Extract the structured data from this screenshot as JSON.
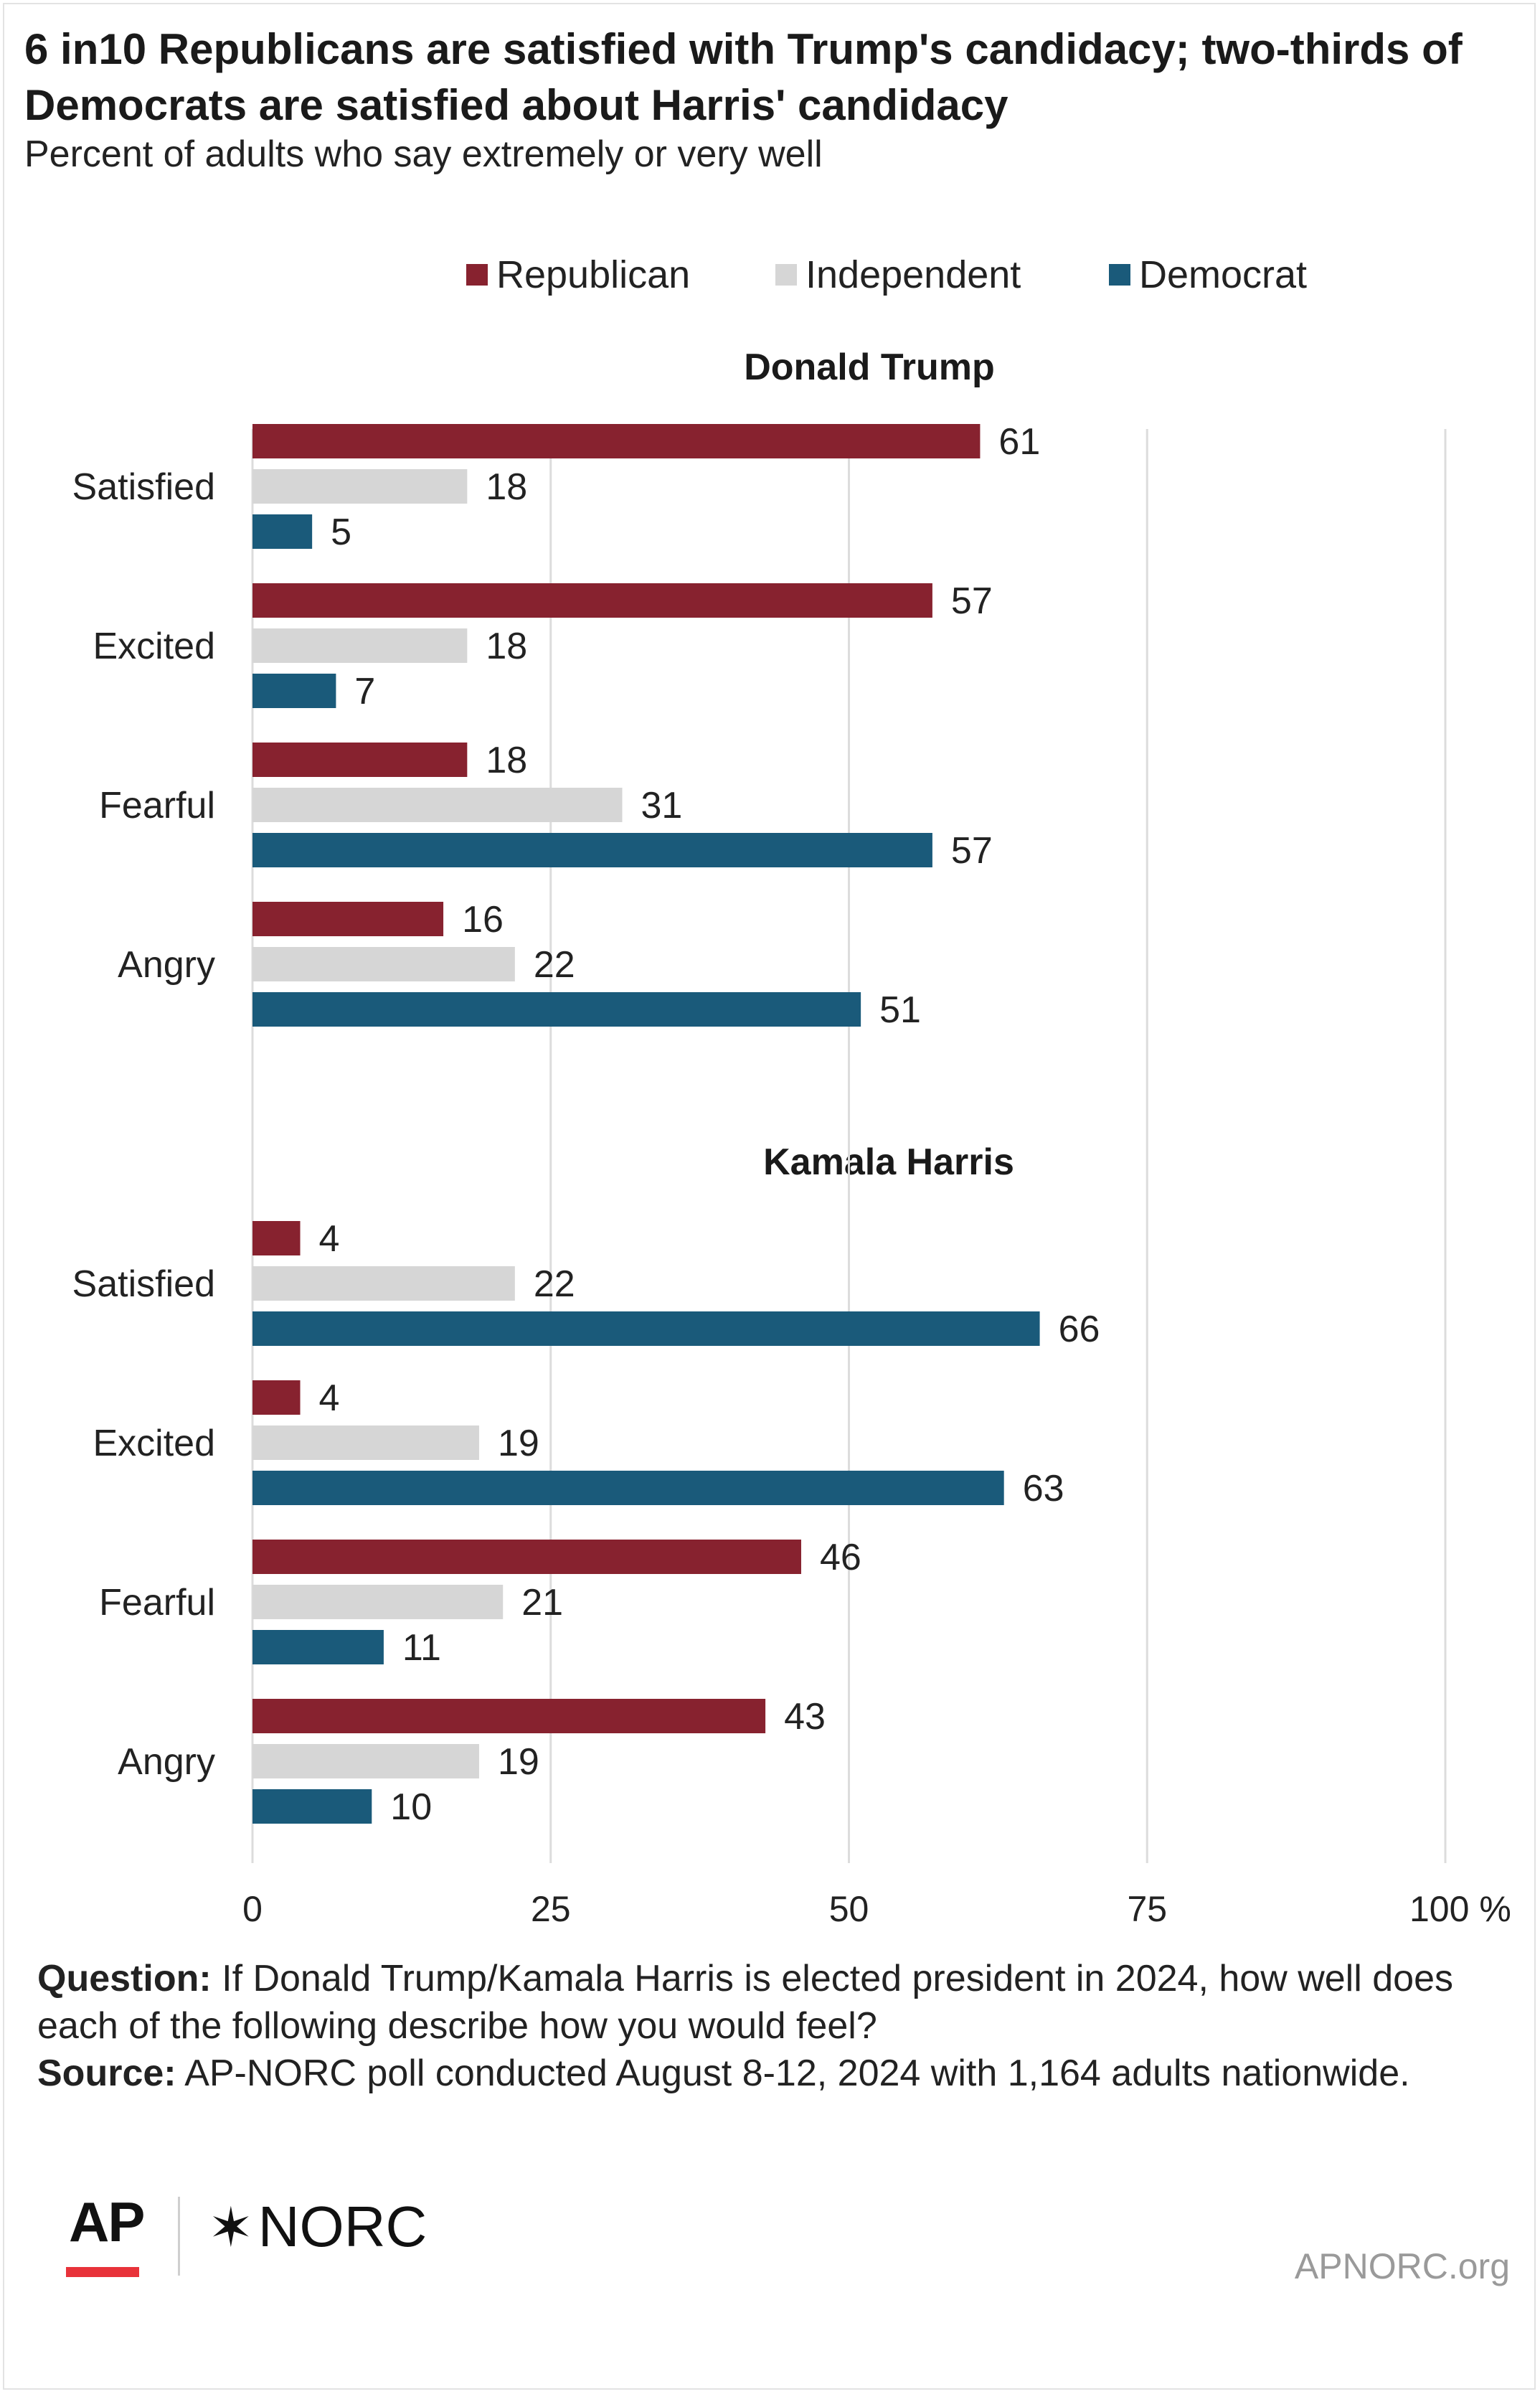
{
  "header": {
    "title": " 6 in10 Republicans are satisfied with Trump's candidacy; two-thirds of Democrats are satisfied about Harris' candidacy",
    "subtitle": "Percent of adults who say extremely or very well"
  },
  "colors": {
    "republican": "#87222f",
    "independent": "#d6d6d6",
    "democrat": "#1a5a7a",
    "grid": "#dcdcdc"
  },
  "chart_data": {
    "type": "bar",
    "orientation": "horizontal",
    "grid": true,
    "legend_position": "top",
    "xlim": [
      0,
      100
    ],
    "x_ticks": [
      "0",
      "25",
      "50",
      "75",
      "100 %"
    ],
    "categories": [
      "Satisfied",
      "Excited",
      "Fearful",
      "Angry"
    ],
    "legend": [
      "Republican",
      "Independent",
      "Democrat"
    ],
    "panels": [
      {
        "title": "Donald Trump",
        "series": [
          {
            "name": "Republican",
            "values": [
              61,
              57,
              18,
              16
            ]
          },
          {
            "name": "Independent",
            "values": [
              18,
              18,
              31,
              22
            ]
          },
          {
            "name": "Democrat",
            "values": [
              5,
              7,
              57,
              51
            ]
          }
        ]
      },
      {
        "title": "Kamala Harris",
        "series": [
          {
            "name": "Republican",
            "values": [
              4,
              4,
              46,
              43
            ]
          },
          {
            "name": "Independent",
            "values": [
              22,
              19,
              21,
              19
            ]
          },
          {
            "name": "Democrat",
            "values": [
              66,
              63,
              11,
              10
            ]
          }
        ]
      }
    ]
  },
  "notes": {
    "question_label": "Question:",
    "question_text": " If Donald Trump/Kamala Harris is elected president in 2024, how well does each of the following describe how you would feel?",
    "source_label": "Source:",
    "source_text": " AP-NORC poll conducted August 8-12, 2024 with 1,164 adults nationwide."
  },
  "footer": {
    "logo_ap": "AP",
    "logo_norc": "NORC",
    "logo_norc_star": "✶",
    "site": "APNORC.org"
  }
}
